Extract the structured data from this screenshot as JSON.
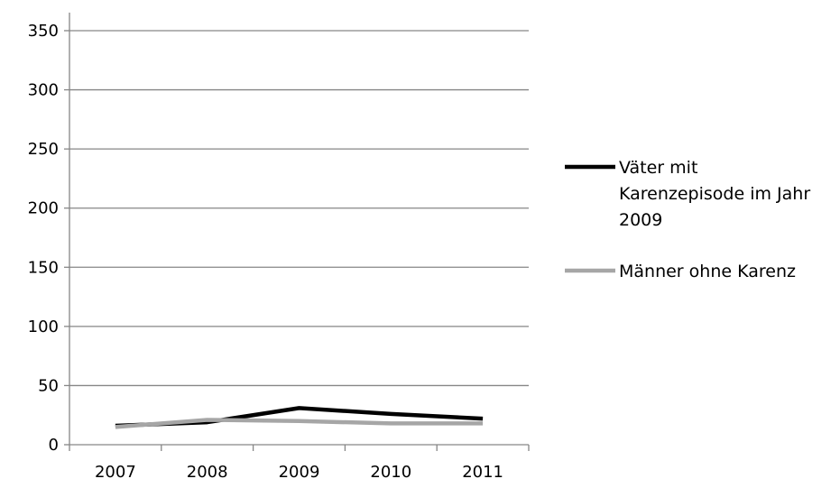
{
  "chart_data": {
    "type": "line",
    "title": "",
    "xlabel": "",
    "ylabel": "",
    "categories": [
      "2007",
      "2008",
      "2009",
      "2010",
      "2011"
    ],
    "ylim": [
      0,
      350
    ],
    "yticks": [
      "0",
      "50",
      "100",
      "150",
      "200",
      "250",
      "300",
      "350"
    ],
    "grid": true,
    "legend_position": "right",
    "series": [
      {
        "name": "Väter mit Karenzepisode im Jahr 2009",
        "legend_lines": [
          "Väter mit",
          "Karenzepisode im Jahr",
          "2009"
        ],
        "color": "#000000",
        "values": [
          16,
          19,
          31,
          26,
          22
        ]
      },
      {
        "name": "Männer ohne Karenz",
        "legend_lines": [
          "Männer ohne Karenz"
        ],
        "color": "#a6a6a6",
        "values": [
          15,
          21,
          20,
          18,
          18
        ]
      }
    ]
  }
}
